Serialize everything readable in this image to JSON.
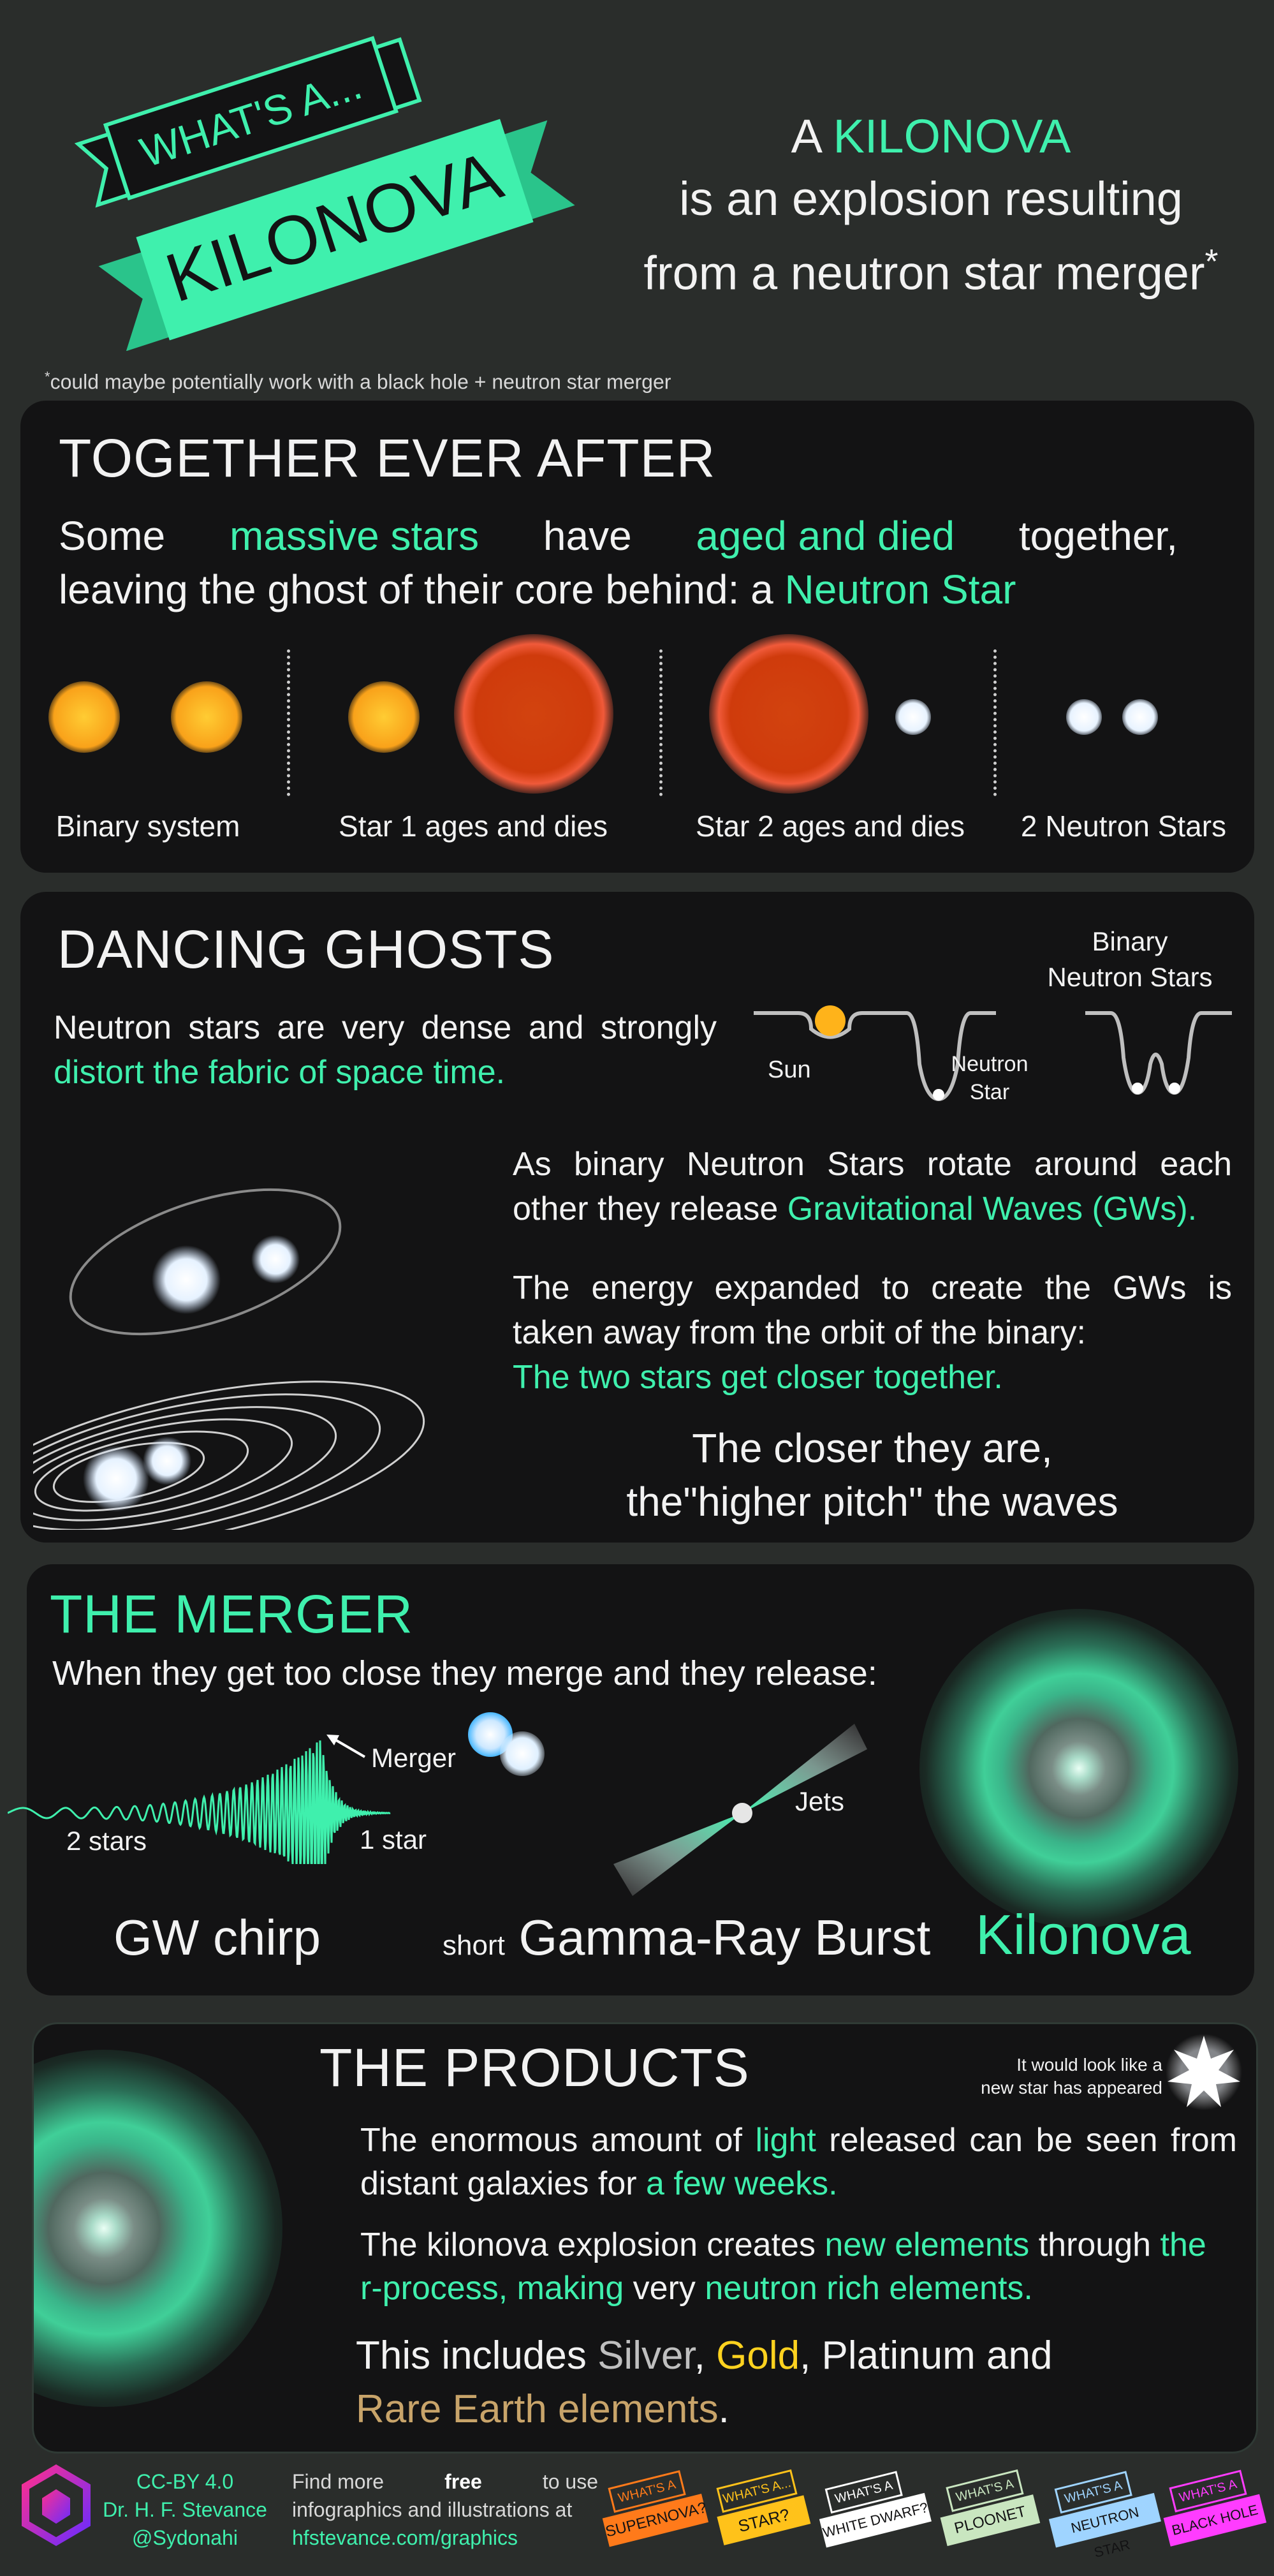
{
  "header": {
    "ribbon_top": "WHAT'S A...",
    "ribbon_main": "KILONOVA",
    "headline_a": "A ",
    "headline_kilonova": "KILONOVA",
    "headline_line2": "is an explosion resulting",
    "headline_line3": "from a neutron star merger",
    "headline_asterisk": "*",
    "footnote_star": "*",
    "footnote": "could maybe potentially work with a black hole + neutron star merger"
  },
  "together": {
    "title": "TOGETHER EVER AFTER",
    "p_some": "Some",
    "p_massive": "massive stars",
    "p_have": "have",
    "p_aged": "aged and died",
    "p_together": "together,",
    "p_line2": "leaving the ghost of their core behind: a ",
    "p_neutron": "Neutron Star",
    "labels": [
      "Binary system",
      "Star 1 ages and dies",
      "Star 2 ages and dies",
      "2 Neutron Stars"
    ]
  },
  "dancing": {
    "title": "DANCING GHOSTS",
    "p1_a": "Neutron stars are very dense and strongly ",
    "p1_b": "distort the fabric of space time.",
    "label_sun": "Sun",
    "label_ns_1": "Neutron",
    "label_ns_2": "Star",
    "label_binary_1": "Binary",
    "label_binary_2": "Neutron Stars",
    "p2_a": "As binary Neutron Stars rotate around each other they release ",
    "p2_b": "Gravitational Waves (GWs).",
    "p3_a": "The energy expanded to create the GWs is taken away from the orbit of the binary:",
    "p3_b": "The two stars get closer together.",
    "p4_line1": "The closer they are,",
    "p4_line2": "the\"higher pitch\" the waves"
  },
  "merger": {
    "title": "THE MERGER",
    "subtitle": "When they get too close they merge and they release:",
    "label_merger": "Merger",
    "label_2stars": "2 stars",
    "label_1star": "1 star",
    "label_jets": "Jets",
    "cap_chirp": "GW chirp",
    "cap_short": "short",
    "cap_grb": "Gamma-Ray Burst",
    "cap_kilonova": "Kilonova"
  },
  "products": {
    "title": "THE PRODUCTS",
    "newstar_1": "It would look like a",
    "newstar_2": "new star has appeared",
    "p1_a": "The enormous amount of ",
    "p1_light": "light",
    "p1_b": " released can be seen from distant galaxies for ",
    "p1_weeks": "a few weeks.",
    "p2_a": "The kilonova explosion creates ",
    "p2_new": "new elements",
    "p2_b": " through ",
    "p2_r": "the r-process, making",
    "p2_c": " very ",
    "p2_rich": "neutron rich elements.",
    "p3_a": "This includes ",
    "p3_silver": "Silver",
    "p3_comma": ", ",
    "p3_gold": "Gold",
    "p3_b": ", Platinum and",
    "p3_rare": "Rare Earth elements",
    "p3_dot": "."
  },
  "footer": {
    "license": "CC-BY 4.0",
    "author": "Dr. H. F. Stevance",
    "handle": "@Sydonahi",
    "find_a": "Find more ",
    "find_free": "free",
    "find_b": " to use",
    "find_line2": "infographics and illustrations at",
    "url": "hfstevance.com/graphics",
    "badges": [
      {
        "top": "WHAT'S A",
        "main": "SUPERNOVA?",
        "color": "#ff7a1a"
      },
      {
        "top": "WHAT'S A...",
        "main": "STAR?",
        "color": "#ffc21a"
      },
      {
        "top": "WHAT'S A",
        "main": "WHITE DWARF?",
        "color": "#ffffff"
      },
      {
        "top": "WHAT'S A",
        "main": "PLOONET",
        "color": "#c9e6c0"
      },
      {
        "top": "WHAT'S A",
        "main": "NEUTRON STAR",
        "color": "#9fd4ff"
      },
      {
        "top": "WHAT'S A",
        "main": "BLACK HOLE",
        "color": "#ff3cff"
      }
    ]
  },
  "colors": {
    "accent": "#3ff0ad",
    "panel": "#131314",
    "background": "#2a2d2b",
    "silver": "#bfbfbf",
    "gold": "#ffd21f",
    "rare_earth": "#c8a46a"
  }
}
